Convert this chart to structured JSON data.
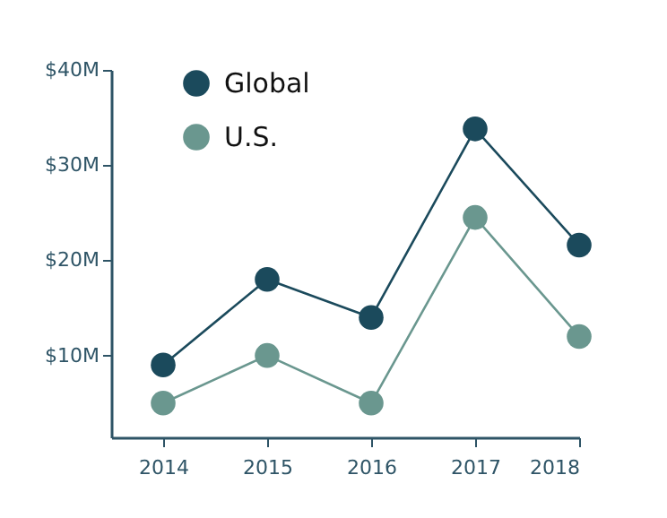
{
  "chart_data": {
    "type": "line",
    "x": [
      2014,
      2015,
      2016,
      2017,
      2018
    ],
    "series": [
      {
        "name": "Global",
        "color": "#1b4a5c",
        "values": [
          9,
          18,
          14,
          33.8,
          21.6
        ]
      },
      {
        "name": "U.S.",
        "color": "#6a978f",
        "values": [
          5,
          10,
          5,
          24.5,
          12
        ]
      }
    ],
    "xlim": [
      2013.5,
      2018
    ],
    "xticks": [
      2014,
      2015,
      2016,
      2017,
      2018
    ],
    "ylim": [
      1.4,
      40
    ],
    "yticks": [
      {
        "value": 10,
        "label": "$10M"
      },
      {
        "value": 20,
        "label": "$20M"
      },
      {
        "value": 30,
        "label": "$30M"
      },
      {
        "value": 40,
        "label": "$40M"
      }
    ],
    "grid": false,
    "legend": "top left",
    "marker": "circle",
    "line_style": "solid"
  }
}
